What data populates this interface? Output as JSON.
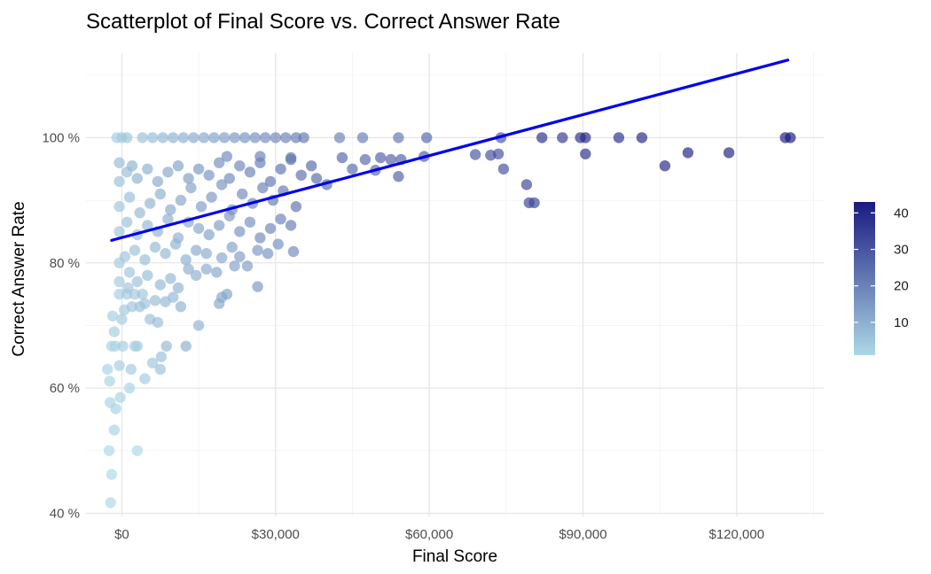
{
  "chart_data": {
    "type": "scatter",
    "title": "Scatterplot of Final Score vs. Correct Answer Rate",
    "xlabel": "Final Score",
    "ylabel": "Correct Answer Rate",
    "xlim": [
      -7000,
      137000
    ],
    "ylim": [
      39.5,
      113.5
    ],
    "x_ticks": [
      {
        "value": 0,
        "label": "$0"
      },
      {
        "value": 30000,
        "label": "$30,000"
      },
      {
        "value": 60000,
        "label": "$60,000"
      },
      {
        "value": 90000,
        "label": "$90,000"
      },
      {
        "value": 120000,
        "label": "$120,000"
      }
    ],
    "y_ticks": [
      {
        "value": 40,
        "label": "40 %"
      },
      {
        "value": 60,
        "label": "60 %"
      },
      {
        "value": 80,
        "label": "80 %"
      },
      {
        "value": 100,
        "label": "100 %"
      }
    ],
    "grid": true,
    "trend_line": {
      "x": [
        -2000,
        130000
      ],
      "y": [
        83.6,
        112.4
      ],
      "color": "#0000ee"
    },
    "color_scale": {
      "low_color": "#add8e6",
      "high_color": "#1a1a80",
      "min": 1,
      "max": 43,
      "ticks": [
        10,
        20,
        30,
        40
      ],
      "legend_position": "right"
    },
    "points": [
      [
        -2200,
        41.7,
        1
      ],
      [
        -2000,
        46.2,
        1
      ],
      [
        -2500,
        50.0,
        1
      ],
      [
        3000,
        50.0,
        1
      ],
      [
        -1500,
        53.3,
        2
      ],
      [
        -1200,
        56.7,
        2
      ],
      [
        -2300,
        57.7,
        2
      ],
      [
        -300,
        58.5,
        2
      ],
      [
        1500,
        60.0,
        2
      ],
      [
        -2400,
        61.1,
        2
      ],
      [
        -2800,
        63.0,
        2
      ],
      [
        -500,
        63.6,
        3
      ],
      [
        1800,
        63.0,
        4
      ],
      [
        4500,
        61.5,
        4
      ],
      [
        6000,
        64.0,
        5
      ],
      [
        7500,
        63.0,
        6
      ],
      [
        7700,
        65.0,
        6
      ],
      [
        -2000,
        66.7,
        2
      ],
      [
        -1300,
        66.7,
        2
      ],
      [
        200,
        66.7,
        3
      ],
      [
        2500,
        66.7,
        3
      ],
      [
        3000,
        66.7,
        4
      ],
      [
        8700,
        66.7,
        8
      ],
      [
        12500,
        66.7,
        10
      ],
      [
        -1500,
        69.0,
        3
      ],
      [
        0,
        71.0,
        4
      ],
      [
        -1800,
        71.5,
        3
      ],
      [
        500,
        72.5,
        4
      ],
      [
        2000,
        73.0,
        5
      ],
      [
        5500,
        71.0,
        6
      ],
      [
        7000,
        70.5,
        7
      ],
      [
        15000,
        70.0,
        9
      ],
      [
        -500,
        75.0,
        3
      ],
      [
        1000,
        75.0,
        4
      ],
      [
        2500,
        75.0,
        4
      ],
      [
        4000,
        75.0,
        5
      ],
      [
        1200,
        76.0,
        5
      ],
      [
        3500,
        73.0,
        6
      ],
      [
        4500,
        73.5,
        6
      ],
      [
        6500,
        74.0,
        7
      ],
      [
        8500,
        73.8,
        8
      ],
      [
        10000,
        74.5,
        8
      ],
      [
        11500,
        73.0,
        9
      ],
      [
        19000,
        73.5,
        12
      ],
      [
        19500,
        74.5,
        12
      ],
      [
        20500,
        75.0,
        13
      ],
      [
        26500,
        76.2,
        15
      ],
      [
        -500,
        77.0,
        4
      ],
      [
        1500,
        78.5,
        5
      ],
      [
        3000,
        77.0,
        6
      ],
      [
        5000,
        78.0,
        7
      ],
      [
        7500,
        76.5,
        8
      ],
      [
        9500,
        77.5,
        8
      ],
      [
        11000,
        76.0,
        9
      ],
      [
        13000,
        79.0,
        10
      ],
      [
        14500,
        78.0,
        10
      ],
      [
        16500,
        79.0,
        11
      ],
      [
        18500,
        78.5,
        12
      ],
      [
        22000,
        79.5,
        13
      ],
      [
        24500,
        79.5,
        14
      ],
      [
        -500,
        80.0,
        4
      ],
      [
        600,
        81.0,
        5
      ],
      [
        2500,
        82.0,
        6
      ],
      [
        4500,
        80.5,
        7
      ],
      [
        6500,
        82.5,
        8
      ],
      [
        8500,
        81.5,
        8
      ],
      [
        10500,
        83.0,
        9
      ],
      [
        12500,
        80.5,
        10
      ],
      [
        14500,
        82.0,
        11
      ],
      [
        16500,
        81.5,
        11
      ],
      [
        19500,
        80.8,
        12
      ],
      [
        21500,
        82.5,
        13
      ],
      [
        23000,
        81.0,
        14
      ],
      [
        26500,
        82.0,
        15
      ],
      [
        28500,
        81.5,
        16
      ],
      [
        30500,
        83.0,
        17
      ],
      [
        33500,
        81.8,
        18
      ],
      [
        -500,
        85.0,
        5
      ],
      [
        1000,
        86.5,
        6
      ],
      [
        3000,
        84.5,
        7
      ],
      [
        5000,
        86.0,
        8
      ],
      [
        7000,
        85.0,
        9
      ],
      [
        9000,
        87.0,
        10
      ],
      [
        11000,
        84.0,
        10
      ],
      [
        13000,
        86.5,
        11
      ],
      [
        15000,
        85.5,
        12
      ],
      [
        17000,
        84.5,
        13
      ],
      [
        19000,
        86.0,
        14
      ],
      [
        21000,
        87.5,
        15
      ],
      [
        23000,
        85.0,
        16
      ],
      [
        25000,
        86.5,
        17
      ],
      [
        27000,
        84.0,
        18
      ],
      [
        29000,
        85.5,
        19
      ],
      [
        31000,
        87.0,
        20
      ],
      [
        33000,
        86.0,
        21
      ],
      [
        -500,
        89.0,
        5
      ],
      [
        1500,
        90.5,
        7
      ],
      [
        3500,
        88.0,
        8
      ],
      [
        5500,
        89.5,
        9
      ],
      [
        7500,
        91.0,
        10
      ],
      [
        9500,
        88.5,
        11
      ],
      [
        11500,
        90.0,
        12
      ],
      [
        13500,
        92.0,
        13
      ],
      [
        15500,
        89.0,
        14
      ],
      [
        17500,
        90.5,
        15
      ],
      [
        19500,
        92.5,
        16
      ],
      [
        21500,
        88.5,
        17
      ],
      [
        23500,
        91.0,
        18
      ],
      [
        25500,
        89.5,
        19
      ],
      [
        27500,
        92.0,
        20
      ],
      [
        29500,
        90.0,
        21
      ],
      [
        31500,
        91.5,
        22
      ],
      [
        34000,
        89.0,
        23
      ],
      [
        -500,
        93.0,
        6
      ],
      [
        1000,
        94.5,
        7
      ],
      [
        3000,
        93.5,
        9
      ],
      [
        5000,
        95.0,
        10
      ],
      [
        7000,
        93.0,
        11
      ],
      [
        9000,
        94.5,
        12
      ],
      [
        11000,
        95.5,
        13
      ],
      [
        13000,
        93.5,
        14
      ],
      [
        15000,
        95.0,
        15
      ],
      [
        17000,
        94.0,
        16
      ],
      [
        19000,
        96.0,
        17
      ],
      [
        21000,
        93.5,
        18
      ],
      [
        23000,
        95.5,
        19
      ],
      [
        25000,
        94.5,
        20
      ],
      [
        27000,
        96.0,
        21
      ],
      [
        29000,
        93.0,
        22
      ],
      [
        31000,
        95.0,
        23
      ],
      [
        33000,
        96.5,
        24
      ],
      [
        35000,
        94.0,
        24
      ],
      [
        37000,
        95.5,
        25
      ],
      [
        38000,
        93.5,
        25
      ],
      [
        40000,
        92.5,
        25
      ],
      [
        -500,
        96.0,
        7
      ],
      [
        2000,
        95.5,
        9
      ],
      [
        20500,
        97.0,
        18
      ],
      [
        27000,
        97.0,
        20
      ],
      [
        33000,
        96.8,
        22
      ],
      [
        -1000,
        100,
        3
      ],
      [
        0,
        100,
        4
      ],
      [
        1000,
        100,
        5
      ],
      [
        4000,
        100,
        6
      ],
      [
        6000,
        100,
        7
      ],
      [
        8000,
        100,
        8
      ],
      [
        10000,
        100,
        9
      ],
      [
        12000,
        100,
        10
      ],
      [
        14000,
        100,
        11
      ],
      [
        16000,
        100,
        12
      ],
      [
        18000,
        100,
        13
      ],
      [
        20000,
        100,
        14
      ],
      [
        22000,
        100,
        15
      ],
      [
        24000,
        100,
        16
      ],
      [
        26000,
        100,
        17
      ],
      [
        28000,
        100,
        18
      ],
      [
        30000,
        100,
        19
      ],
      [
        32000,
        100,
        20
      ],
      [
        34000,
        100,
        21
      ],
      [
        35500,
        100,
        22
      ],
      [
        42500,
        100,
        20
      ],
      [
        47000,
        100,
        21
      ],
      [
        54000,
        100,
        22
      ],
      [
        59500,
        100,
        26
      ],
      [
        74000,
        100,
        30
      ],
      [
        82000,
        100,
        38
      ],
      [
        86000,
        100,
        36
      ],
      [
        89500,
        100,
        38
      ],
      [
        90500,
        100,
        40
      ],
      [
        97000,
        100,
        38
      ],
      [
        101500,
        100,
        40
      ],
      [
        129500,
        100,
        42
      ],
      [
        130500,
        100,
        43
      ],
      [
        43000,
        96.8,
        26
      ],
      [
        45000,
        95.0,
        25
      ],
      [
        47500,
        96.5,
        26
      ],
      [
        49500,
        94.8,
        26
      ],
      [
        50500,
        96.8,
        27
      ],
      [
        52500,
        96.5,
        27
      ],
      [
        54000,
        93.8,
        27
      ],
      [
        54500,
        96.5,
        27
      ],
      [
        59000,
        97.0,
        28
      ],
      [
        69000,
        97.3,
        30
      ],
      [
        72000,
        97.2,
        31
      ],
      [
        73500,
        97.4,
        31
      ],
      [
        74500,
        95.0,
        31
      ],
      [
        79000,
        92.5,
        33
      ],
      [
        79500,
        89.6,
        33
      ],
      [
        80500,
        89.6,
        33
      ],
      [
        90500,
        97.4,
        38
      ],
      [
        106000,
        95.5,
        40
      ],
      [
        110500,
        97.6,
        41
      ],
      [
        118500,
        97.6,
        41
      ]
    ]
  }
}
